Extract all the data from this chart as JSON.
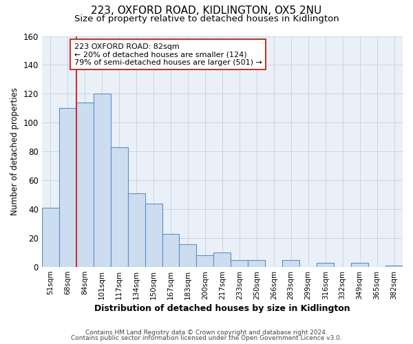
{
  "title": "223, OXFORD ROAD, KIDLINGTON, OX5 2NU",
  "subtitle": "Size of property relative to detached houses in Kidlington",
  "xlabel": "Distribution of detached houses by size in Kidlington",
  "ylabel": "Number of detached properties",
  "bar_labels": [
    "51sqm",
    "68sqm",
    "84sqm",
    "101sqm",
    "117sqm",
    "134sqm",
    "150sqm",
    "167sqm",
    "183sqm",
    "200sqm",
    "217sqm",
    "233sqm",
    "250sqm",
    "266sqm",
    "283sqm",
    "299sqm",
    "316sqm",
    "332sqm",
    "349sqm",
    "365sqm",
    "382sqm"
  ],
  "bar_values": [
    41,
    110,
    114,
    120,
    83,
    51,
    44,
    23,
    16,
    8,
    10,
    5,
    5,
    0,
    5,
    0,
    3,
    0,
    3,
    0,
    1
  ],
  "bar_color": "#ccddf0",
  "bar_edge_color": "#5b8ec7",
  "vline_color": "#c0392b",
  "ylim": [
    0,
    160
  ],
  "yticks": [
    0,
    20,
    40,
    60,
    80,
    100,
    120,
    140,
    160
  ],
  "annotation_title": "223 OXFORD ROAD: 82sqm",
  "annotation_line1": "← 20% of detached houses are smaller (124)",
  "annotation_line2": "79% of semi-detached houses are larger (501) →",
  "footer_line1": "Contains HM Land Registry data © Crown copyright and database right 2024.",
  "footer_line2": "Contains public sector information licensed under the Open Government Licence v3.0.",
  "background_color": "#ffffff",
  "plot_bg_color": "#eaf0f8",
  "grid_color": "#c8d4e8",
  "title_fontsize": 11,
  "subtitle_fontsize": 9.5
}
